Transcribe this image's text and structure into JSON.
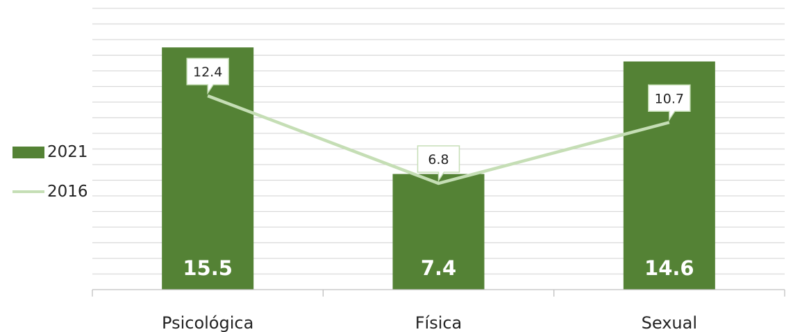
{
  "chart_data": {
    "type": "bar",
    "categories": [
      "Psicológica",
      "Física",
      "Sexual"
    ],
    "series": [
      {
        "name": "2021",
        "type": "bar",
        "values": [
          15.5,
          7.4,
          14.6
        ]
      },
      {
        "name": "2016",
        "type": "line",
        "values": [
          12.4,
          6.8,
          10.7
        ]
      }
    ],
    "ylim": [
      0,
      18
    ],
    "grid": true,
    "legend_position": "left",
    "colors": {
      "bar": "#548235",
      "line": "#c5deb5",
      "grid": "#d9d9d9",
      "axis": "#bfbfbf"
    }
  }
}
